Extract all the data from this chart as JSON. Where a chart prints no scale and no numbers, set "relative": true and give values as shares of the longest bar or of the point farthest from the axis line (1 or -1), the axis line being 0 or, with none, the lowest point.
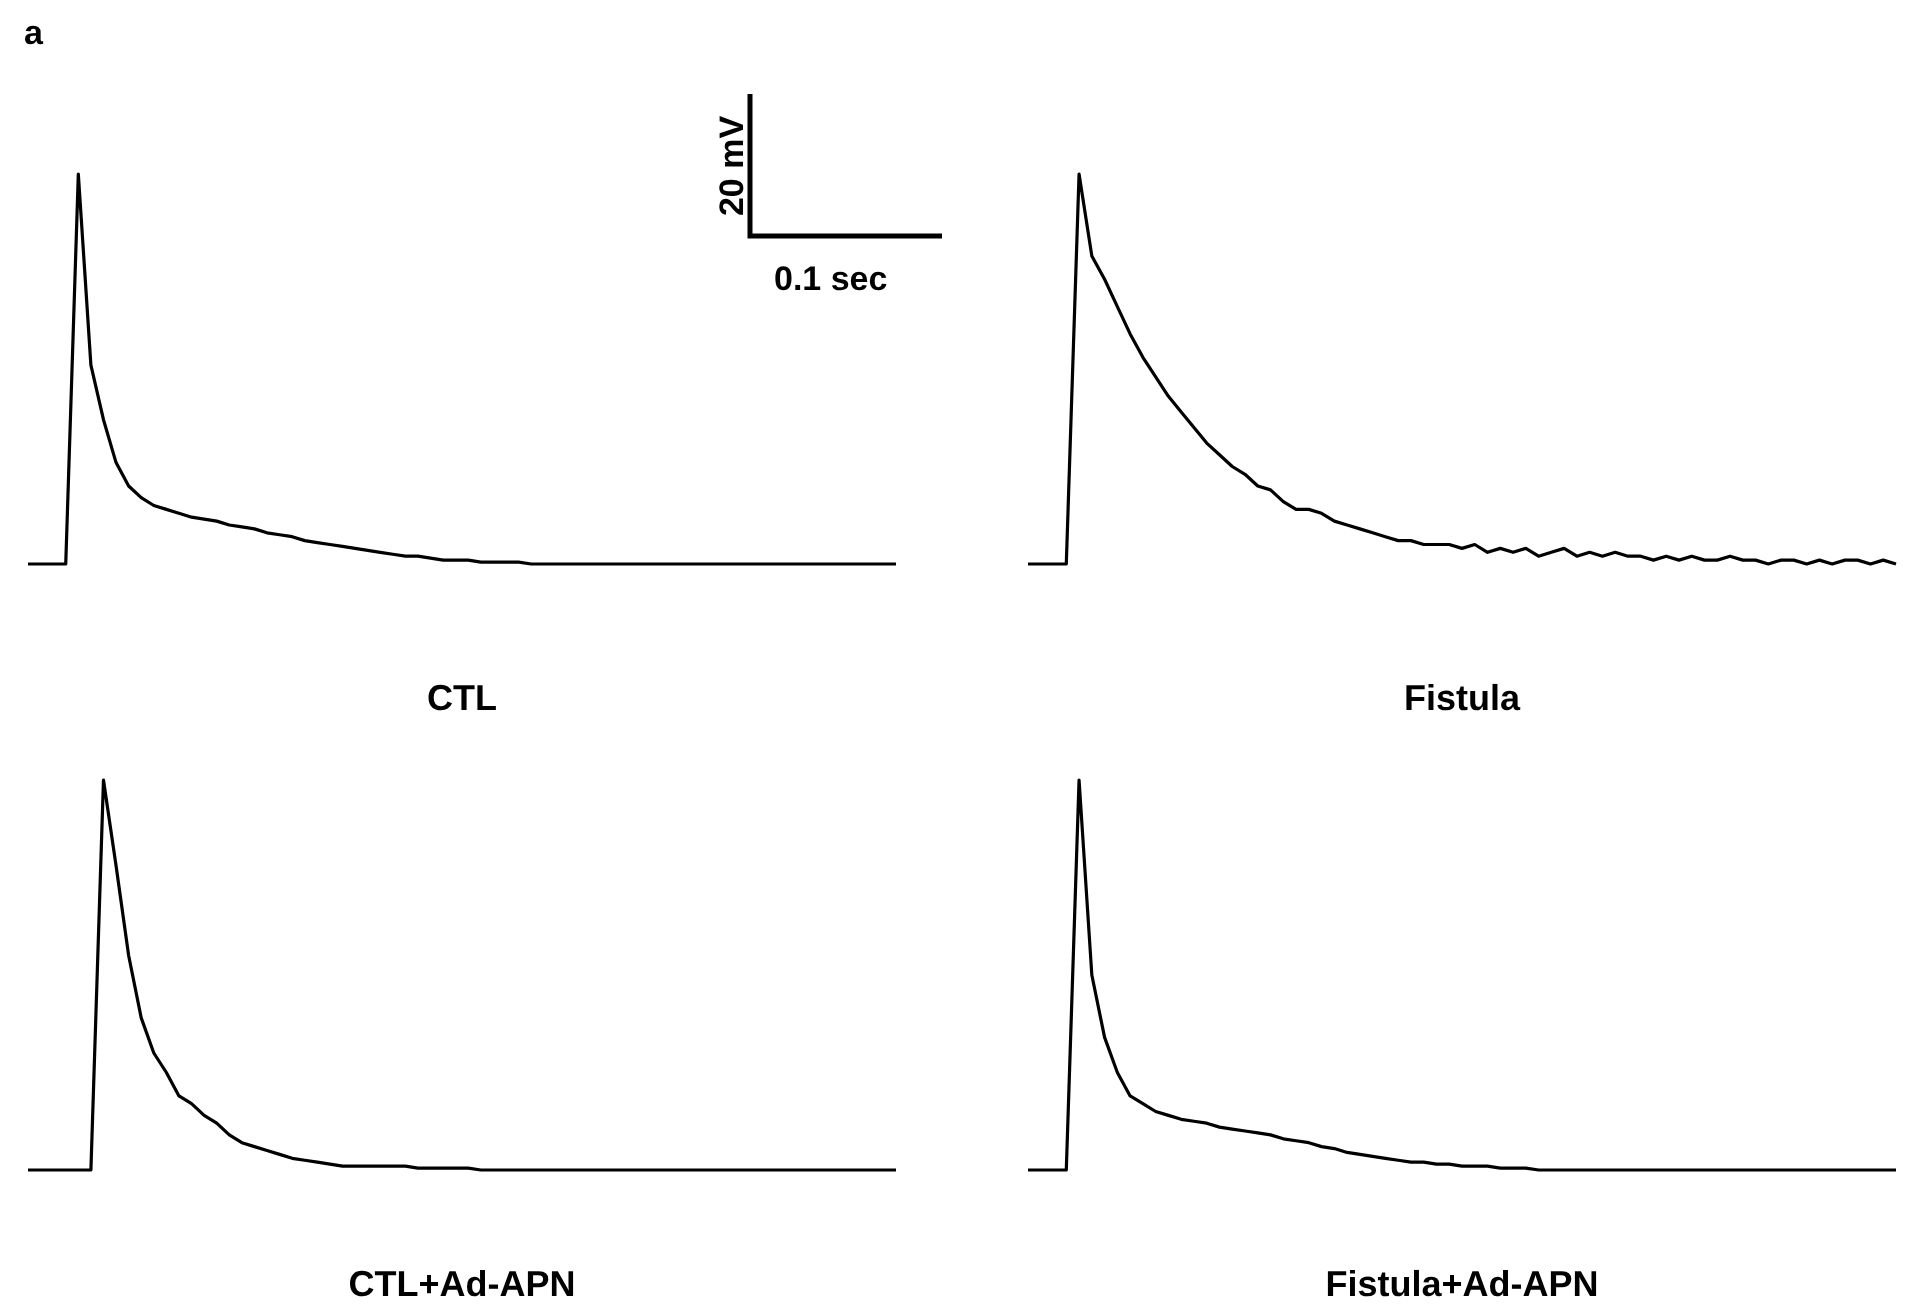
{
  "chart_data": [
    {
      "type": "line",
      "title": "CTL",
      "relative": true,
      "annotations": [
        "a",
        "20 mV",
        "0.1 sec"
      ],
      "categories": [
        null,
        null,
        null,
        null,
        null,
        null,
        null,
        null,
        null,
        null,
        null,
        null,
        null,
        null,
        null,
        null,
        null,
        null,
        null,
        null,
        null,
        null,
        null,
        null,
        null,
        null,
        null,
        null,
        null,
        null,
        null,
        null,
        null,
        null,
        null,
        null,
        null,
        null,
        null,
        null,
        null,
        null,
        null,
        null,
        null,
        null,
        null,
        null,
        null,
        null,
        null,
        null,
        null,
        null,
        null,
        null,
        null,
        null,
        null,
        null,
        null,
        null,
        null,
        null,
        null,
        null,
        null,
        null,
        null,
        null
      ],
      "series": [
        {
          "color": "#000000",
          "values": [
            0,
            0,
            0,
            0,
            1,
            0.51,
            0.37,
            0.26,
            0.2,
            0.17,
            0.15,
            0.14,
            0.13,
            0.12,
            0.115,
            0.11,
            0.1,
            0.095,
            0.09,
            0.08,
            0.075,
            0.07,
            0.06,
            0.055,
            0.05,
            0.045,
            0.04,
            0.035,
            0.03,
            0.025,
            0.02,
            0.02,
            0.015,
            0.01,
            0.01,
            0.01,
            0.005,
            0.005,
            0.005,
            0.005,
            0,
            0,
            0,
            0,
            0,
            0,
            0,
            0,
            0,
            0,
            0,
            0,
            0,
            0,
            0,
            0,
            0,
            0,
            0,
            0,
            0,
            0,
            0,
            0,
            0,
            0,
            0,
            0,
            0,
            0
          ]
        }
      ]
    },
    {
      "type": "line",
      "title": "Fistula",
      "relative": true,
      "categories": [
        null,
        null,
        null,
        null,
        null,
        null,
        null,
        null,
        null,
        null,
        null,
        null,
        null,
        null,
        null,
        null,
        null,
        null,
        null,
        null,
        null,
        null,
        null,
        null,
        null,
        null,
        null,
        null,
        null,
        null,
        null,
        null,
        null,
        null,
        null,
        null,
        null,
        null,
        null,
        null,
        null,
        null,
        null,
        null,
        null,
        null,
        null,
        null,
        null,
        null,
        null,
        null,
        null,
        null,
        null,
        null,
        null,
        null,
        null,
        null,
        null,
        null,
        null,
        null,
        null,
        null,
        null,
        null,
        null
      ],
      "series": [
        {
          "color": "#000000",
          "values": [
            0,
            0,
            0,
            0,
            1,
            0.79,
            0.73,
            0.66,
            0.59,
            0.53,
            0.48,
            0.43,
            0.39,
            0.35,
            0.31,
            0.28,
            0.25,
            0.23,
            0.2,
            0.19,
            0.16,
            0.14,
            0.14,
            0.13,
            0.11,
            0.1,
            0.09,
            0.08,
            0.07,
            0.06,
            0.06,
            0.05,
            0.05,
            0.05,
            0.04,
            0.05,
            0.03,
            0.04,
            0.03,
            0.04,
            0.02,
            0.03,
            0.04,
            0.02,
            0.03,
            0.02,
            0.03,
            0.02,
            0.02,
            0.01,
            0.02,
            0.01,
            0.02,
            0.01,
            0.01,
            0.02,
            0.01,
            0.01,
            0,
            0.01,
            0.01,
            0,
            0.01,
            0,
            0.01,
            0.01,
            0,
            0.01,
            0
          ]
        }
      ]
    },
    {
      "type": "line",
      "title": "CTL+Ad-APN",
      "relative": true,
      "categories": [
        null,
        null,
        null,
        null,
        null,
        null,
        null,
        null,
        null,
        null,
        null,
        null,
        null,
        null,
        null,
        null,
        null,
        null,
        null,
        null,
        null,
        null,
        null,
        null,
        null,
        null,
        null,
        null,
        null,
        null,
        null,
        null,
        null,
        null,
        null,
        null,
        null,
        null,
        null,
        null,
        null,
        null,
        null,
        null,
        null,
        null,
        null,
        null,
        null,
        null,
        null,
        null,
        null,
        null,
        null,
        null,
        null,
        null,
        null,
        null,
        null,
        null,
        null,
        null,
        null,
        null,
        null,
        null,
        null,
        null
      ],
      "series": [
        {
          "color": "#000000",
          "values": [
            0,
            0,
            0,
            0,
            0,
            0,
            1,
            0.78,
            0.55,
            0.39,
            0.3,
            0.25,
            0.19,
            0.17,
            0.14,
            0.12,
            0.09,
            0.07,
            0.06,
            0.05,
            0.04,
            0.03,
            0.025,
            0.02,
            0.015,
            0.01,
            0.01,
            0.01,
            0.01,
            0.01,
            0.01,
            0.005,
            0.005,
            0.005,
            0.005,
            0.005,
            0,
            0,
            0,
            0,
            0,
            0,
            0,
            0,
            0,
            0,
            0,
            0,
            0,
            0,
            0,
            0,
            0,
            0,
            0,
            0,
            0,
            0,
            0,
            0,
            0,
            0,
            0,
            0,
            0,
            0,
            0,
            0,
            0,
            0
          ]
        }
      ]
    },
    {
      "type": "line",
      "title": "Fistula+Ad-APN",
      "relative": true,
      "categories": [
        null,
        null,
        null,
        null,
        null,
        null,
        null,
        null,
        null,
        null,
        null,
        null,
        null,
        null,
        null,
        null,
        null,
        null,
        null,
        null,
        null,
        null,
        null,
        null,
        null,
        null,
        null,
        null,
        null,
        null,
        null,
        null,
        null,
        null,
        null,
        null,
        null,
        null,
        null,
        null,
        null,
        null,
        null,
        null,
        null,
        null,
        null,
        null,
        null,
        null,
        null,
        null,
        null,
        null,
        null,
        null,
        null,
        null,
        null,
        null,
        null,
        null,
        null,
        null,
        null,
        null,
        null,
        null,
        null
      ],
      "series": [
        {
          "color": "#000000",
          "values": [
            0,
            0,
            0,
            0,
            1,
            0.5,
            0.34,
            0.25,
            0.19,
            0.17,
            0.15,
            0.14,
            0.13,
            0.125,
            0.12,
            0.11,
            0.105,
            0.1,
            0.095,
            0.09,
            0.08,
            0.075,
            0.07,
            0.06,
            0.055,
            0.045,
            0.04,
            0.035,
            0.03,
            0.025,
            0.02,
            0.02,
            0.015,
            0.015,
            0.01,
            0.01,
            0.01,
            0.005,
            0.005,
            0.005,
            0,
            0,
            0,
            0,
            0,
            0,
            0,
            0,
            0,
            0,
            0,
            0,
            0,
            0,
            0,
            0,
            0,
            0,
            0,
            0,
            0,
            0,
            0,
            0,
            0,
            0,
            0,
            0,
            0
          ]
        }
      ]
    }
  ]
}
